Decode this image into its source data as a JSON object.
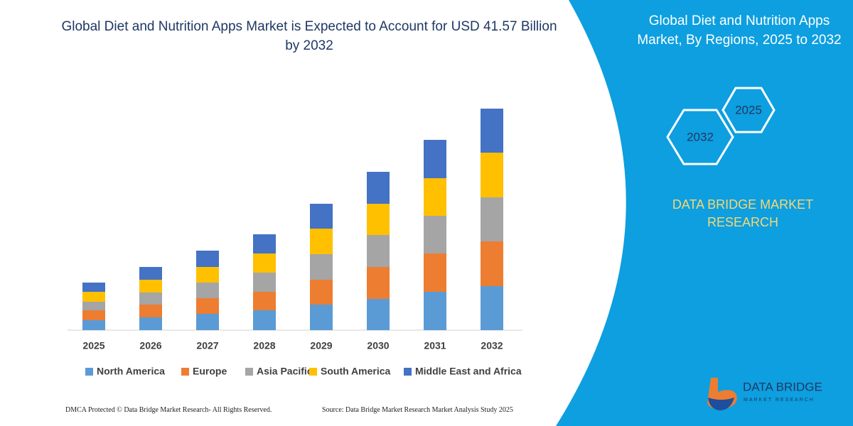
{
  "chart_data": {
    "type": "stacked_bar",
    "title": "Global Diet and Nutrition Apps Market is Expected to Account for USD 41.57 Billion by 2032",
    "categories": [
      "2025",
      "2026",
      "2027",
      "2028",
      "2029",
      "2030",
      "2031",
      "2032"
    ],
    "series": [
      {
        "name": "North America",
        "color": "#5b9bd5",
        "values": [
          14,
          18,
          23,
          28,
          36,
          44,
          54,
          62
        ]
      },
      {
        "name": "Europe",
        "color": "#ed7d31",
        "values": [
          14,
          18,
          22,
          26,
          35,
          45,
          54,
          63
        ]
      },
      {
        "name": "Asia Pacific",
        "color": "#a5a5a5",
        "values": [
          12,
          17,
          22,
          27,
          36,
          45,
          53,
          62
        ]
      },
      {
        "name": "South America",
        "color": "#ffc000",
        "values": [
          14,
          18,
          22,
          27,
          36,
          44,
          53,
          63
        ]
      },
      {
        "name": "Middle East and Africa",
        "color": "#4472c4",
        "values": [
          13,
          18,
          23,
          27,
          35,
          45,
          54,
          62
        ]
      }
    ],
    "legend": "bottom"
  },
  "panel": {
    "title": "Global Diet and Nutrition Apps Market, By Regions, 2025 to 2032",
    "hex_top": "2025",
    "hex_bottom": "2032",
    "brand": "DATA BRIDGE MARKET RESEARCH"
  },
  "logo": {
    "name": "DATA BRIDGE",
    "tagline": "MARKET RESEARCH"
  },
  "footer": {
    "left": "DMCA Protected © Data Bridge Market Research-  All Rights Reserved.",
    "right": "Source: Data Bridge Market Research  Market Analysis Study 2025"
  }
}
